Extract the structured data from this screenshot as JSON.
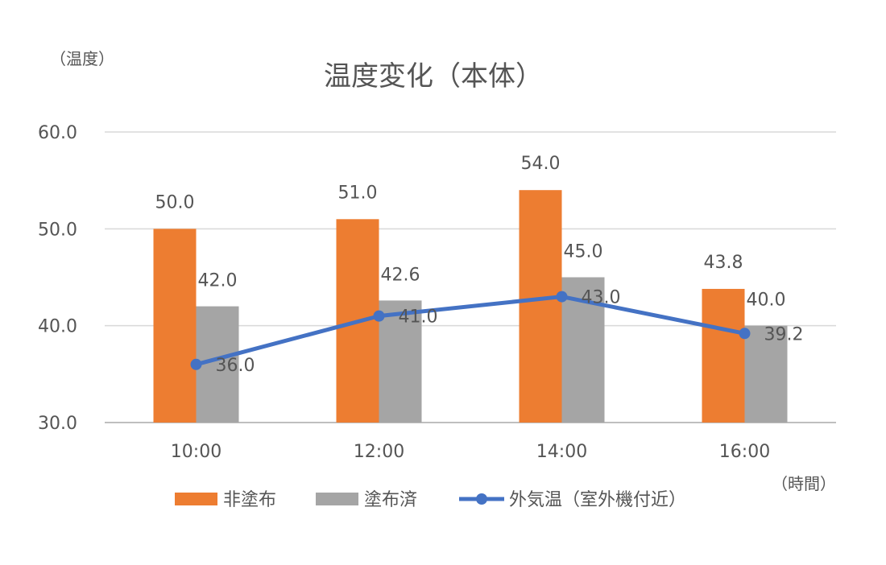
{
  "chart_data": {
    "type": "bar",
    "title": "温度変化（本体）",
    "ylabel": "（温度）",
    "xlabel": "（時間）",
    "categories": [
      "10:00",
      "12:00",
      "14:00",
      "16:00"
    ],
    "ylim": [
      30,
      60
    ],
    "yticks": [
      "30.0",
      "40.0",
      "50.0",
      "60.0"
    ],
    "grid": true,
    "legend_position": "bottom",
    "series": [
      {
        "name": "非塗布",
        "kind": "bar",
        "color": "#ED7D31",
        "values": [
          50.0,
          51.0,
          54.0,
          43.8
        ],
        "labels": [
          "50.0",
          "51.0",
          "54.0",
          "43.8"
        ]
      },
      {
        "name": "塗布済",
        "kind": "bar",
        "color": "#A5A5A5",
        "values": [
          42.0,
          42.6,
          45.0,
          40.0
        ],
        "labels": [
          "42.0",
          "42.6",
          "45.0",
          "40.0"
        ]
      },
      {
        "name": "外気温（室外機付近）",
        "kind": "line",
        "color": "#4472C4",
        "values": [
          36.0,
          41.0,
          43.0,
          39.2
        ],
        "labels": [
          "36.0",
          "41.0",
          "43.0",
          "39.2"
        ]
      }
    ]
  }
}
